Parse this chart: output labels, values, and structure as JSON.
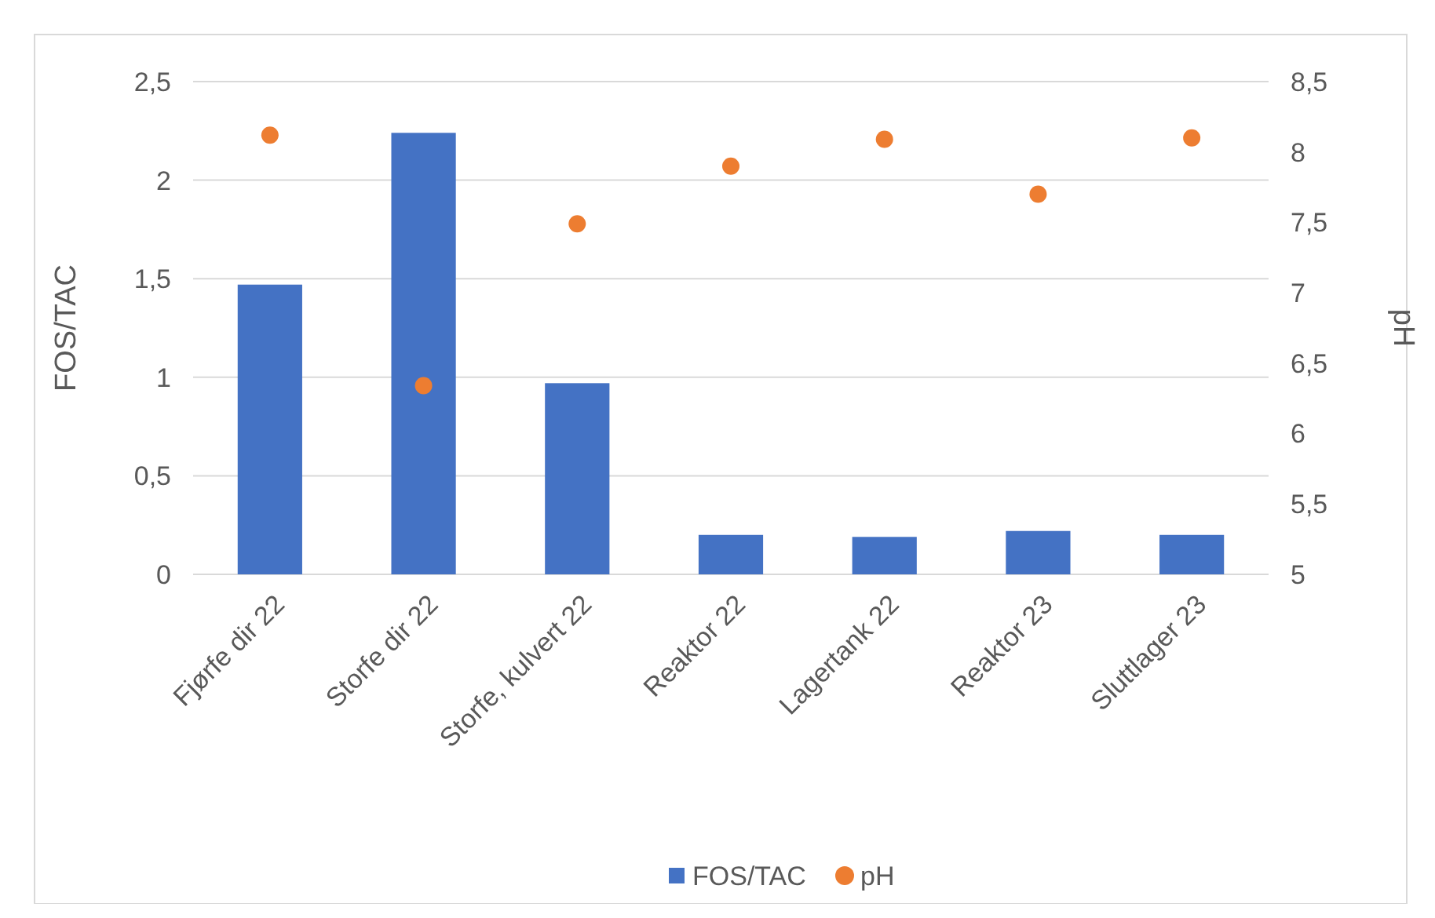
{
  "chart_data": {
    "type": "bar",
    "categories": [
      "Fjørfe dir 22",
      "Storfe dir 22",
      "Storfe, kulvert 22",
      "Reaktor 22",
      "Lagertank 22",
      "Reaktor 23",
      "Sluttlager 23"
    ],
    "series": [
      {
        "name": "FOS/TAC",
        "color": "#4472c4",
        "values": [
          1.47,
          2.24,
          0.97,
          0.2,
          0.19,
          0.22,
          0.2
        ]
      },
      {
        "name": "pH",
        "type": "scatter",
        "axis": "y2",
        "color": "#ed7d31",
        "values": [
          8.12,
          6.34,
          7.49,
          7.9,
          8.09,
          7.7,
          8.1
        ]
      }
    ],
    "ylabel": "FOS/TAC",
    "y2label": "pH",
    "ylim": [
      0,
      2.5
    ],
    "yticks": [
      0,
      {
        "value": 0.5,
        "label": "0,5"
      },
      1,
      {
        "value": 1.5,
        "label": "1,5"
      },
      2,
      {
        "value": 2.5,
        "label": "2,5"
      }
    ],
    "y2lim": [
      5,
      8.5
    ],
    "y2ticks": [
      5,
      {
        "value": 5.5,
        "label": "5,5"
      },
      6,
      {
        "value": 6.5,
        "label": "6,5"
      },
      7,
      {
        "value": 7.5,
        "label": "7,5"
      },
      8,
      {
        "value": 8.5,
        "label": "8,5"
      }
    ],
    "grid": "y",
    "legend": "bottom",
    "marker": "circle"
  }
}
